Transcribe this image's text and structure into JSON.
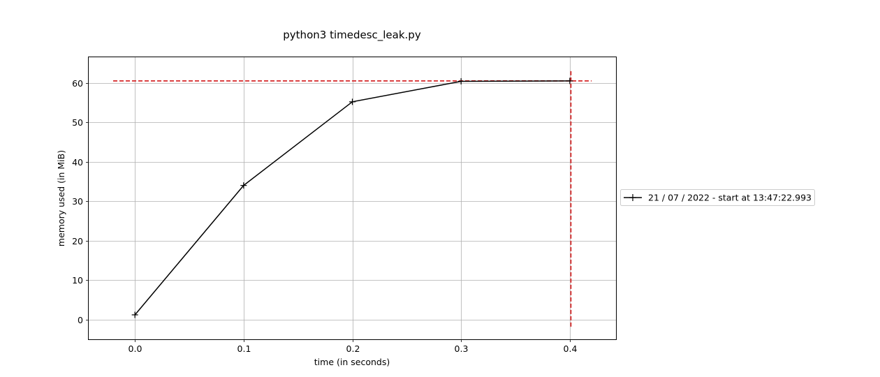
{
  "chart_data": {
    "type": "line",
    "title": "python3 timedesc_leak.py",
    "xlabel": "time (in seconds)",
    "ylabel": "memory used (in MiB)",
    "xlim": [
      -0.0425,
      0.4425
    ],
    "ylim": [
      -5,
      66.5
    ],
    "xticks": [
      0.0,
      0.1,
      0.2,
      0.3,
      0.4
    ],
    "xtick_labels": [
      "0.0",
      "0.1",
      "0.2",
      "0.3",
      "0.4"
    ],
    "yticks": [
      0,
      10,
      20,
      30,
      40,
      50,
      60
    ],
    "ytick_labels": [
      "0",
      "10",
      "20",
      "30",
      "40",
      "50",
      "60"
    ],
    "grid": true,
    "legend_position": "right, outside plot",
    "series": [
      {
        "name": "21 / 07 / 2022 - start at 13:47:22.993",
        "color": "#000000",
        "marker": "+",
        "x": [
          0.0,
          0.1,
          0.2,
          0.3,
          0.4
        ],
        "y": [
          1.2,
          34.0,
          55.2,
          60.4,
          60.5
        ]
      }
    ],
    "reference_lines": [
      {
        "orientation": "horizontal",
        "value": 60.5,
        "from": -0.02,
        "to": 0.42,
        "color": "#d62728",
        "style": "dashed"
      },
      {
        "orientation": "vertical",
        "value": 0.401,
        "from": -1.8,
        "to": 63.5,
        "color": "#d62728",
        "style": "dashed"
      }
    ]
  }
}
